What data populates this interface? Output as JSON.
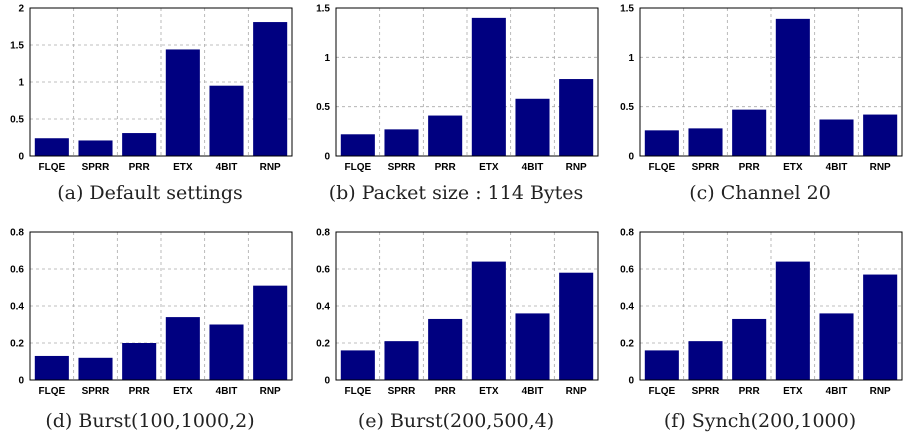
{
  "chart_data": [
    {
      "type": "bar",
      "caption": "(a) Default settings",
      "categories": [
        "FLQE",
        "SPRR",
        "PRR",
        "ETX",
        "4BIT",
        "RNP"
      ],
      "values": [
        0.24,
        0.21,
        0.31,
        1.44,
        0.95,
        1.81
      ],
      "ylim": [
        0,
        2
      ],
      "yticks": [
        "0",
        "0.5",
        "1",
        "1.5",
        "2"
      ],
      "grid": true,
      "bar_color": "#000080"
    },
    {
      "type": "bar",
      "caption": "(b) Packet size : 114 Bytes",
      "categories": [
        "FLQE",
        "SPRR",
        "PRR",
        "ETX",
        "4BIT",
        "RNP"
      ],
      "values": [
        0.22,
        0.27,
        0.41,
        1.4,
        0.58,
        0.78
      ],
      "ylim": [
        0,
        1.5
      ],
      "yticks": [
        "0",
        "0.5",
        "1",
        "1.5"
      ],
      "grid": true,
      "bar_color": "#000080"
    },
    {
      "type": "bar",
      "caption": "(c) Channel 20",
      "categories": [
        "FLQE",
        "SPRR",
        "PRR",
        "ETX",
        "4BIT",
        "RNP"
      ],
      "values": [
        0.26,
        0.28,
        0.47,
        1.39,
        0.37,
        0.42
      ],
      "ylim": [
        0,
        1.5
      ],
      "yticks": [
        "0",
        "0.5",
        "1",
        "1.5"
      ],
      "grid": true,
      "bar_color": "#000080"
    },
    {
      "type": "bar",
      "caption": "(d) Burst(100,1000,2)",
      "categories": [
        "FLQE",
        "SPRR",
        "PRR",
        "ETX",
        "4BIT",
        "RNP"
      ],
      "values": [
        0.13,
        0.12,
        0.2,
        0.34,
        0.3,
        0.51
      ],
      "ylim": [
        0,
        0.8
      ],
      "yticks": [
        "0",
        "0.2",
        "0.4",
        "0.6",
        "0.8"
      ],
      "grid": true,
      "bar_color": "#000080"
    },
    {
      "type": "bar",
      "caption": "(e) Burst(200,500,4)",
      "categories": [
        "FLQE",
        "SPRR",
        "PRR",
        "ETX",
        "4BIT",
        "RNP"
      ],
      "values": [
        0.16,
        0.21,
        0.33,
        0.64,
        0.36,
        0.58
      ],
      "ylim": [
        0,
        0.8
      ],
      "yticks": [
        "0",
        "0.2",
        "0.4",
        "0.6",
        "0.8"
      ],
      "grid": true,
      "bar_color": "#000080"
    },
    {
      "type": "bar",
      "caption": "(f) Synch(200,1000)",
      "categories": [
        "FLQE",
        "SPRR",
        "PRR",
        "ETX",
        "4BIT",
        "RNP"
      ],
      "values": [
        0.16,
        0.21,
        0.33,
        0.64,
        0.36,
        0.57
      ],
      "ylim": [
        0,
        0.8
      ],
      "yticks": [
        "0",
        "0.2",
        "0.4",
        "0.6",
        "0.8"
      ],
      "grid": true,
      "bar_color": "#000080"
    }
  ]
}
